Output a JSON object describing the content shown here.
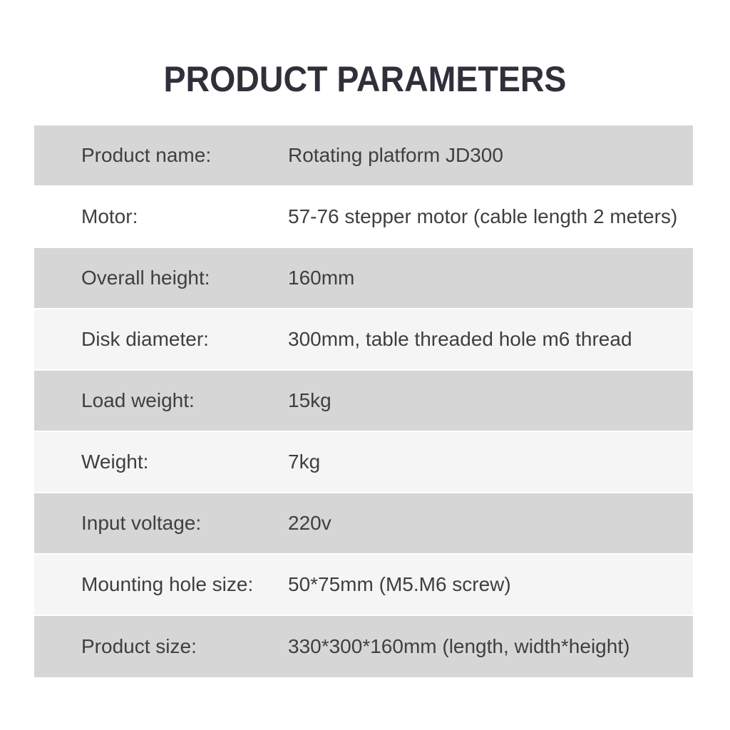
{
  "title": "PRODUCT PARAMETERS",
  "colors": {
    "page_bg": "#ffffff",
    "title": "#2f303a",
    "text": "#3f3f3f",
    "row_dark": "#d6d6d6",
    "row_light": "#f5f5f5",
    "row_white": "#ffffff"
  },
  "table": {
    "rows": [
      {
        "label": "Product name:",
        "value": "Rotating platform JD300",
        "shade": "dark"
      },
      {
        "label": "Motor:",
        "value": "57-76 stepper motor (cable length 2 meters)",
        "shade": "white"
      },
      {
        "label": "Overall height:",
        "value": "160mm",
        "shade": "dark"
      },
      {
        "label": "Disk diameter:",
        "value": "300mm, table threaded hole m6 thread",
        "shade": "light"
      },
      {
        "label": "Load weight:",
        "value": "15kg",
        "shade": "dark"
      },
      {
        "label": "Weight:",
        "value": "7kg",
        "shade": "light"
      },
      {
        "label": "Input voltage:",
        "value": "220v",
        "shade": "dark"
      },
      {
        "label": "Mounting hole size:",
        "value": "50*75mm (M5.M6 screw)",
        "shade": "light"
      },
      {
        "label": "Product size:",
        "value": "330*300*160mm (length, width*height)",
        "shade": "dark"
      }
    ]
  }
}
